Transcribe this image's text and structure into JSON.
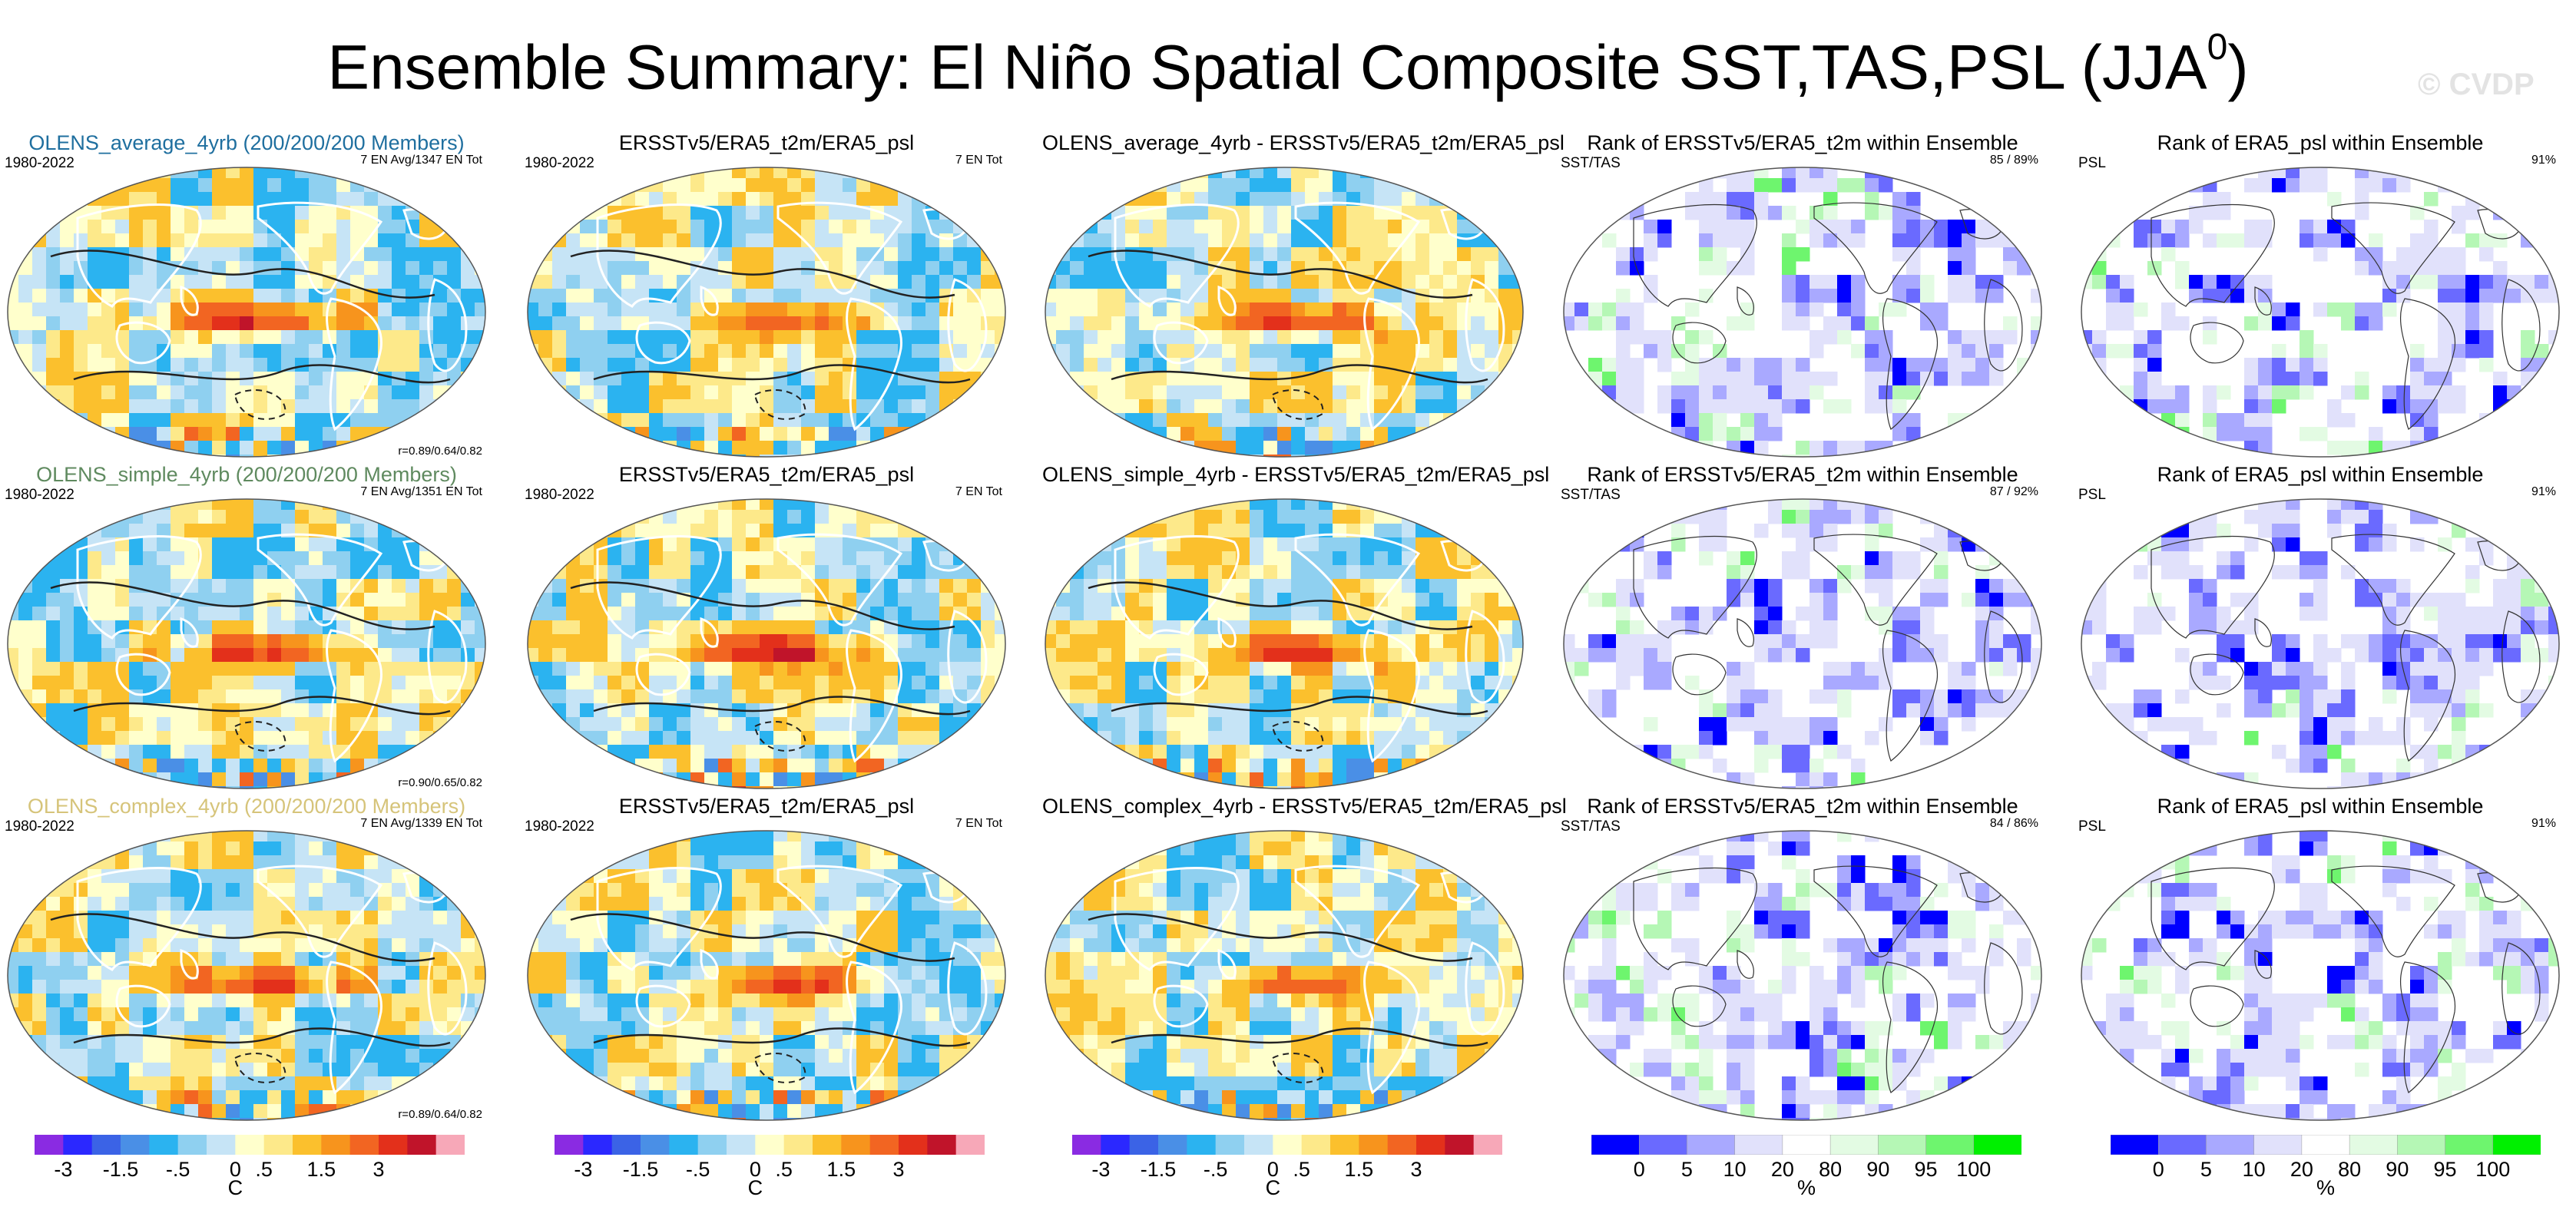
{
  "title": {
    "main": "Ensemble Summary: El Niño Spatial Composite SST,TAS,PSL (JJA",
    "superscript": "0",
    "close": ")"
  },
  "watermark": "© CVDP",
  "colors": {
    "diverging": [
      "#8a2be2",
      "#2b28ff",
      "#3b63e6",
      "#4a8fe6",
      "#2bb3f0",
      "#8fd0f0",
      "#c6e4f6",
      "#ffffcc",
      "#fde98a",
      "#fbc02d",
      "#f7941d",
      "#f26522",
      "#e3301b",
      "#c0142a",
      "#f7a8b8"
    ],
    "rank": [
      "#0000ff",
      "#6a6aff",
      "#a9a9ff",
      "#e1e1fb",
      "#ffffff",
      "#e3fbe3",
      "#b5f7b5",
      "#6ef56e",
      "#00f000"
    ]
  },
  "rows": [
    {
      "model": {
        "title": "OLENS_average_4yrb (200/200/200 Members)",
        "title_color": "#1f6f9f",
        "years": "1980-2022",
        "top_right": "7 EN Avg/1347 EN Tot",
        "bottom_right": "r=0.89/0.64/0.82"
      },
      "obs": {
        "title": "ERSSTv5/ERA5_t2m/ERA5_psl",
        "years": "1980-2022",
        "top_right": "7 EN Tot"
      },
      "diff": {
        "title": "OLENS_average_4yrb - ERSSTv5/ERA5_t2m/ERA5_psl"
      },
      "rank_sst": {
        "title": "Rank of ERSSTv5/ERA5_t2m within Ensemble",
        "top_left": "SST/TAS",
        "top_right": "85 /  89%"
      },
      "rank_psl": {
        "title": "Rank of ERA5_psl within Ensemble",
        "top_left": "PSL",
        "top_right": "91%"
      }
    },
    {
      "model": {
        "title": "OLENS_simple_4yrb (200/200/200 Members)",
        "title_color": "#5f8a5f",
        "years": "1980-2022",
        "top_right": "7 EN Avg/1351 EN Tot",
        "bottom_right": "r=0.90/0.65/0.82"
      },
      "obs": {
        "title": "ERSSTv5/ERA5_t2m/ERA5_psl",
        "years": "1980-2022",
        "top_right": "7 EN Tot"
      },
      "diff": {
        "title": "OLENS_simple_4yrb - ERSSTv5/ERA5_t2m/ERA5_psl"
      },
      "rank_sst": {
        "title": "Rank of ERSSTv5/ERA5_t2m within Ensemble",
        "top_left": "SST/TAS",
        "top_right": "87 /  92%"
      },
      "rank_psl": {
        "title": "Rank of ERA5_psl within Ensemble",
        "top_left": "PSL",
        "top_right": "91%"
      }
    },
    {
      "model": {
        "title": "OLENS_complex_4yrb (200/200/200 Members)",
        "title_color": "#d6c47a",
        "years": "1980-2022",
        "top_right": "7 EN Avg/1339 EN Tot",
        "bottom_right": "r=0.89/0.64/0.82"
      },
      "obs": {
        "title": "ERSSTv5/ERA5_t2m/ERA5_psl",
        "years": "1980-2022",
        "top_right": "7 EN Tot"
      },
      "diff": {
        "title": "OLENS_complex_4yrb - ERSSTv5/ERA5_t2m/ERA5_psl"
      },
      "rank_sst": {
        "title": "Rank of ERSSTv5/ERA5_t2m within Ensemble",
        "top_left": "SST/TAS",
        "top_right": "84 /  86%"
      },
      "rank_psl": {
        "title": "Rank of ERA5_psl within Ensemble",
        "top_left": "PSL",
        "top_right": "91%"
      }
    }
  ],
  "colorbars": {
    "temperature": {
      "labels": [
        "-3",
        "-1.5",
        "-.5",
        "0",
        ".5",
        "1.5",
        "3"
      ],
      "unit": "C"
    },
    "rank": {
      "labels": [
        "0",
        "5",
        "10",
        "20",
        "80",
        "90",
        "95",
        "100"
      ],
      "unit": "%"
    }
  },
  "chart_data": {
    "type": "heatmap",
    "title": "Ensemble Summary: El Niño Spatial Composite SST,TAS,PSL (JJA0)",
    "projection": "global map, 5 columns x 3 rows",
    "columns": [
      "Model ensemble mean composite",
      "Observed composite",
      "Model minus observed",
      "Rank of SST/TAS within ensemble",
      "Rank of PSL within ensemble"
    ],
    "temperature_levels_C": [
      -3,
      -1.5,
      -0.5,
      0,
      0.5,
      1.5,
      3
    ],
    "rank_levels_percent": [
      0,
      5,
      10,
      20,
      80,
      90,
      95,
      100
    ],
    "pattern_correlations": [
      {
        "row": "OLENS_average_4yrb",
        "sst": 0.89,
        "tas": 0.64,
        "psl": 0.82
      },
      {
        "row": "OLENS_simple_4yrb",
        "sst": 0.9,
        "tas": 0.65,
        "psl": 0.82
      },
      {
        "row": "OLENS_complex_4yrb",
        "sst": 0.89,
        "tas": 0.64,
        "psl": 0.82
      }
    ],
    "rank_percent_sst_tas": [
      [
        85,
        89
      ],
      [
        87,
        92
      ],
      [
        84,
        86
      ]
    ],
    "rank_percent_psl": [
      91,
      91,
      91
    ]
  }
}
